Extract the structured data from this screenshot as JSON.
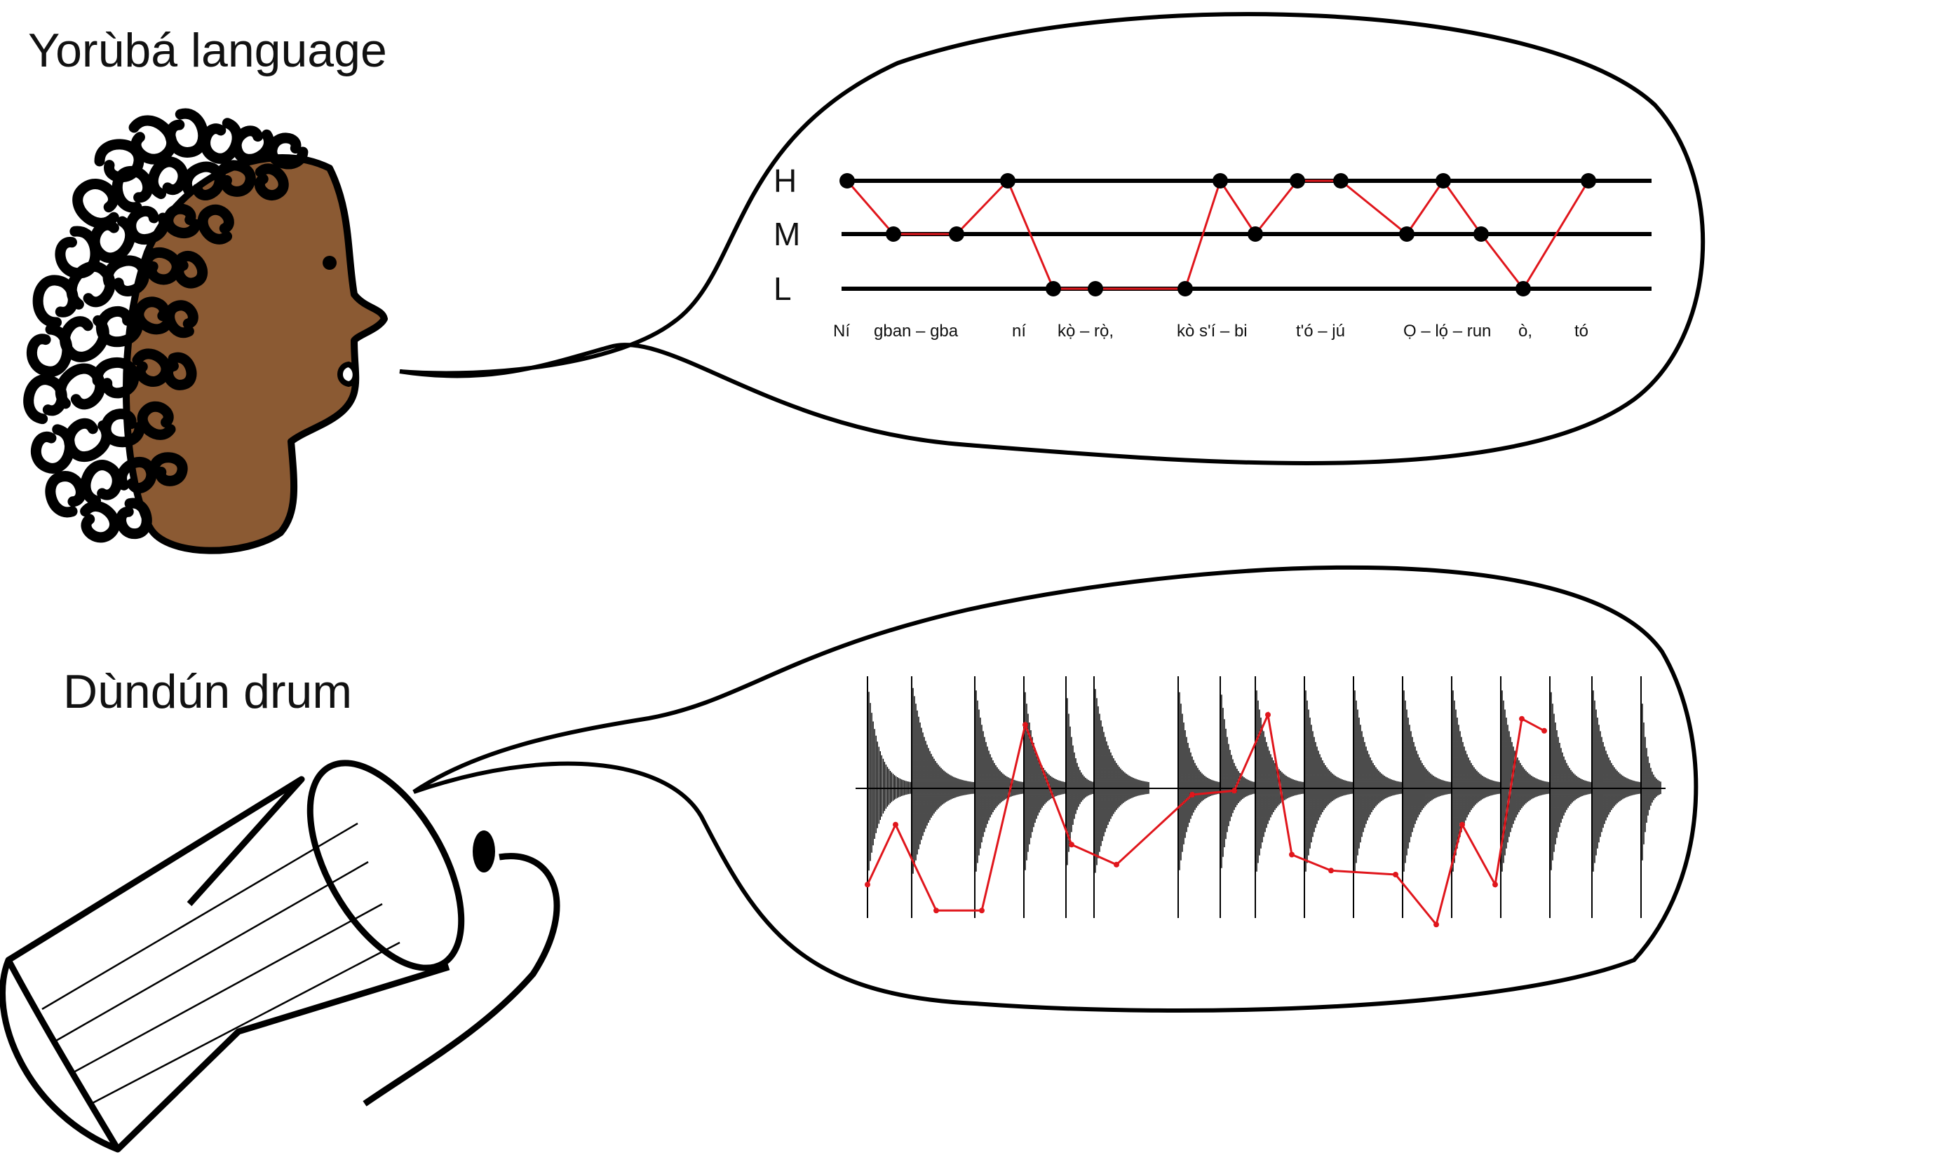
{
  "titles": {
    "language": "Yorùbá language",
    "drum": "Dùndún drum"
  },
  "tone_chart": {
    "levels": [
      "H",
      "M",
      "L"
    ],
    "syllable_labels": [
      "Ní",
      "gban – gba",
      "ní",
      "kọ̀ – rọ̀,",
      "kò s'í – bi",
      "t'ó – jú",
      "Ọ – lọ́ – run",
      "ò,",
      "tó"
    ],
    "tones": [
      "H",
      "M",
      "M",
      "H",
      "L",
      "L",
      "L",
      "H",
      "M",
      "H",
      "H",
      "M",
      "H",
      "M",
      "L",
      "H"
    ]
  },
  "drum_signal": {
    "strokes": 17,
    "pitch_contour_levels": [
      0.15,
      0.45,
      0.02,
      0.02,
      0.95,
      0.35,
      0.25,
      0.6,
      0.62,
      1.0,
      0.3,
      0.22,
      0.2,
      -0.05,
      0.45,
      0.15,
      0.98,
      0.92
    ]
  },
  "colors": {
    "ink": "#000000",
    "tone_line": "#e0161c",
    "skin": "#8b5a33"
  }
}
